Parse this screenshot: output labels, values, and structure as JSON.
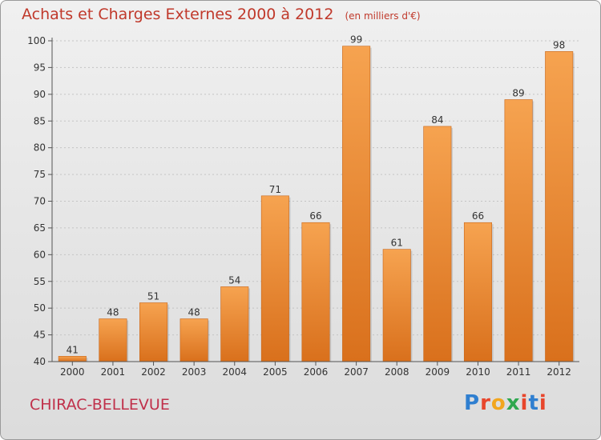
{
  "header": {
    "title": "Achats et Charges Externes 2000 à 2012",
    "unit": "(en milliers d'€)"
  },
  "footer": {
    "commune": "CHIRAC-BELLEVUE",
    "logo": {
      "letters": [
        "P",
        "r",
        "o",
        "x",
        "i",
        "t",
        "i"
      ],
      "colors": [
        "#2f7fd0",
        "#e8462c",
        "#f2a61e",
        "#2fa84f",
        "#e8462c",
        "#2f7fd0",
        "#e8462c"
      ]
    }
  },
  "chart_data": {
    "type": "bar",
    "title": "Achats et Charges Externes 2000 à 2012",
    "categories": [
      "2000",
      "2001",
      "2002",
      "2003",
      "2004",
      "2005",
      "2006",
      "2007",
      "2008",
      "2009",
      "2010",
      "2011",
      "2012"
    ],
    "values": [
      41,
      48,
      51,
      48,
      54,
      71,
      66,
      99,
      61,
      84,
      66,
      89,
      98
    ],
    "ylim": [
      40,
      100
    ],
    "yticks": [
      40,
      45,
      50,
      55,
      60,
      65,
      70,
      75,
      80,
      85,
      90,
      95,
      100
    ],
    "grid": true,
    "colors": {
      "bar_top": "#f6a350",
      "bar_bottom": "#d9701c",
      "axis": "#555555"
    }
  }
}
